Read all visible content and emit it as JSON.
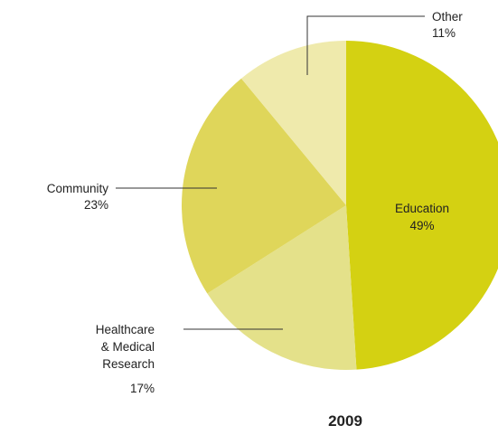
{
  "chart_data": {
    "type": "pie",
    "title": "2009",
    "slices": [
      {
        "label": "Education",
        "value": 49,
        "value_label": "49%",
        "color": "#d4d112"
      },
      {
        "label": "Healthcare\n& Medical\nResearch",
        "value": 17,
        "value_label": "17%",
        "color": "#e4e18a"
      },
      {
        "label": "Community",
        "value": 23,
        "value_label": "23%",
        "color": "#dfd65a"
      },
      {
        "label": "Other",
        "value": 11,
        "value_label": "11%",
        "color": "#efeaac"
      }
    ]
  }
}
